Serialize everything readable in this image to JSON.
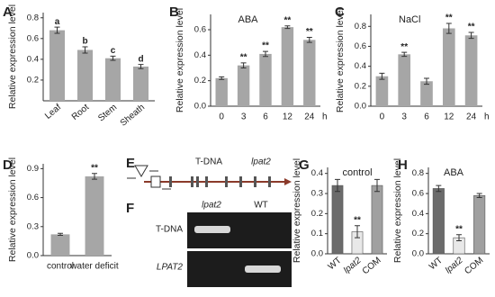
{
  "chart_data": [
    {
      "type": "bar",
      "panel": "A",
      "y_label": "Relative expression level",
      "categories": [
        "Leaf",
        "Root",
        "Stem",
        "Sheath"
      ],
      "values": [
        0.68,
        0.49,
        0.41,
        0.33
      ],
      "errors": [
        0.03,
        0.03,
        0.02,
        0.02
      ],
      "annotations": [
        "a",
        "b",
        "c",
        "d"
      ],
      "color": "#a6a6a6",
      "ylim": [
        0,
        0.85
      ],
      "yticks": [
        0.2,
        0.4,
        0.6,
        0.8
      ]
    },
    {
      "type": "bar",
      "panel": "B",
      "title": "ABA",
      "y_label": "Relative expression level",
      "x_unit": "h",
      "categories": [
        "0",
        "3",
        "6",
        "12",
        "24"
      ],
      "values": [
        0.22,
        0.32,
        0.41,
        0.62,
        0.52
      ],
      "errors": [
        0.01,
        0.02,
        0.02,
        0.01,
        0.02
      ],
      "annotations": [
        null,
        "**",
        "**",
        "**",
        "**"
      ],
      "color": "#a6a6a6",
      "ylim": [
        0,
        0.72
      ],
      "yticks": [
        {
          "value": 0,
          "label": "0.0"
        },
        0.2,
        0.4,
        0.6
      ]
    },
    {
      "type": "bar",
      "panel": "C",
      "title": "NaCl",
      "y_label": "Relative expression level",
      "x_unit": "h",
      "categories": [
        "0",
        "3",
        "6",
        "12",
        "24"
      ],
      "values": [
        0.3,
        0.52,
        0.25,
        0.78,
        0.71
      ],
      "errors": [
        0.03,
        0.02,
        0.03,
        0.05,
        0.03
      ],
      "annotations": [
        null,
        "**",
        null,
        "**",
        "**"
      ],
      "color": "#a6a6a6",
      "ylim": [
        0,
        0.92
      ],
      "yticks": [
        {
          "value": 0,
          "label": "0.0"
        },
        0.2,
        0.4,
        0.6,
        0.8
      ]
    },
    {
      "type": "bar",
      "panel": "D",
      "y_label": "Relative expression level",
      "categories": [
        "control",
        "water deficit"
      ],
      "values": [
        0.22,
        0.82
      ],
      "errors": [
        0.01,
        0.03
      ],
      "annotations": [
        null,
        "**"
      ],
      "color": "#a6a6a6",
      "ylim": [
        0,
        0.95
      ],
      "yticks": [
        {
          "value": 0,
          "label": "0.0"
        },
        0.3,
        0.6,
        0.9
      ]
    },
    {
      "type": "bar",
      "panel": "G",
      "title": "control",
      "y_label": "Relative expression level",
      "categories": [
        "WT",
        "lpat2",
        "COM"
      ],
      "values": [
        0.34,
        0.11,
        0.34
      ],
      "errors": [
        0.03,
        0.03,
        0.03
      ],
      "annotations": [
        null,
        "**",
        null
      ],
      "colors": [
        "#6b6b6b",
        "#e8e8e8",
        "#a0a0a0"
      ],
      "ylim": [
        0,
        0.43
      ],
      "yticks": [
        {
          "value": 0,
          "label": "0.0"
        },
        0.1,
        0.2,
        0.3,
        0.4
      ]
    },
    {
      "type": "bar",
      "panel": "H",
      "title": "ABA",
      "y_label": "Relative expression level",
      "categories": [
        "WT",
        "lpat2",
        "COM"
      ],
      "values": [
        0.65,
        0.16,
        0.58
      ],
      "errors": [
        0.03,
        0.03,
        0.02
      ],
      "annotations": [
        null,
        "**",
        null
      ],
      "colors": [
        "#6b6b6b",
        "#e8e8e8",
        "#a0a0a0"
      ],
      "ylim": [
        0,
        0.86
      ],
      "yticks": [
        {
          "value": 0,
          "label": "0.0"
        },
        0.2,
        0.4,
        0.6,
        0.8
      ]
    }
  ],
  "gene_diagram": {
    "panel": "E",
    "labels": [
      "T-DNA",
      "lpat2"
    ]
  },
  "gel": {
    "panel": "F",
    "lanes": [
      "lpat2",
      "WT"
    ],
    "rows": [
      "T-DNA",
      "LPAT2"
    ]
  }
}
